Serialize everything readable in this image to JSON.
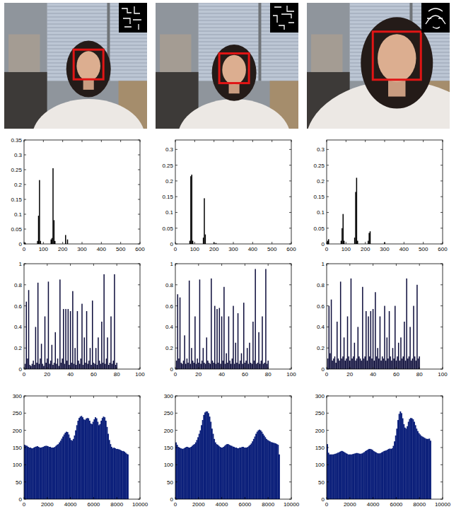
{
  "chart_data": [
    {
      "type": "bar",
      "color": "#000000",
      "xlim": [
        0,
        600
      ],
      "ylim": [
        0,
        0.35
      ],
      "xticks": [
        0,
        100,
        200,
        300,
        400,
        500,
        600
      ],
      "yticks": [
        0,
        0.05,
        0.1,
        0.15,
        0.2,
        0.25,
        0.3,
        0.35
      ],
      "x": [
        5,
        70,
        75,
        80,
        85,
        140,
        145,
        150,
        155,
        160,
        215,
        225
      ],
      "values": [
        0.005,
        0.01,
        0.095,
        0.215,
        0.01,
        0.015,
        0.02,
        0.255,
        0.08,
        0.01,
        0.03,
        0.015
      ]
    },
    {
      "type": "bar",
      "color": "#000000",
      "xlim": [
        0,
        600
      ],
      "ylim": [
        0,
        0.33
      ],
      "xticks": [
        0,
        100,
        200,
        300,
        400,
        500,
        600
      ],
      "yticks": [
        0,
        0.05,
        0.1,
        0.15,
        0.2,
        0.25,
        0.3
      ],
      "x": [
        75,
        80,
        85,
        90,
        145,
        150,
        155,
        200,
        210
      ],
      "values": [
        0.01,
        0.215,
        0.22,
        0.01,
        0.02,
        0.145,
        0.03,
        0.005,
        0.003
      ]
    },
    {
      "type": "bar",
      "color": "#000000",
      "xlim": [
        0,
        600
      ],
      "ylim": [
        0,
        0.33
      ],
      "xticks": [
        0,
        100,
        200,
        300,
        400,
        500,
        600
      ],
      "yticks": [
        0,
        0.05,
        0.1,
        0.15,
        0.2,
        0.25,
        0.3
      ],
      "x": [
        5,
        10,
        75,
        80,
        85,
        90,
        145,
        150,
        155,
        160,
        215,
        220,
        225,
        300
      ],
      "values": [
        0.01,
        0.015,
        0.01,
        0.05,
        0.095,
        0.01,
        0.02,
        0.165,
        0.21,
        0.01,
        0.01,
        0.035,
        0.04,
        0.005
      ]
    },
    {
      "type": "bar",
      "color": "#0c0c3a",
      "xlim": [
        0,
        100
      ],
      "ylim": [
        0,
        1
      ],
      "xticks": [
        0,
        20,
        40,
        60,
        80,
        100
      ],
      "yticks": [
        0,
        0.2,
        0.4,
        0.6,
        0.8,
        1
      ],
      "x": [
        1,
        2,
        3,
        4,
        5,
        6,
        7,
        8,
        9,
        10,
        11,
        12,
        13,
        14,
        15,
        16,
        17,
        18,
        19,
        20,
        21,
        22,
        23,
        24,
        25,
        26,
        27,
        28,
        29,
        30,
        31,
        32,
        33,
        34,
        35,
        36,
        37,
        38,
        39,
        40,
        41,
        42,
        43,
        44,
        45,
        46,
        47,
        48,
        49,
        50,
        51,
        52,
        53,
        54,
        55,
        56,
        57,
        58,
        59,
        60,
        61,
        62,
        63,
        64,
        65,
        66,
        67,
        68,
        69,
        70,
        71,
        72,
        73,
        74,
        75,
        76,
        77,
        78,
        79,
        80
      ],
      "values": [
        0.05,
        0.64,
        0.1,
        0.75,
        0.04,
        0.03,
        0.05,
        0.08,
        0.04,
        0.4,
        0.06,
        0.82,
        0.05,
        0.1,
        0.24,
        0.05,
        0.03,
        0.5,
        0.06,
        0.1,
        0.83,
        0.05,
        0.08,
        0.23,
        0.04,
        0.06,
        0.35,
        0.05,
        0.1,
        0.03,
        0.85,
        0.06,
        0.1,
        0.57,
        0.05,
        0.57,
        0.08,
        0.57,
        0.04,
        0.55,
        0.06,
        0.74,
        0.05,
        0.2,
        0.04,
        0.55,
        0.08,
        0.05,
        0.1,
        0.62,
        0.04,
        0.3,
        0.06,
        0.55,
        0.05,
        0.08,
        0.2,
        0.04,
        0.65,
        0.06,
        0.05,
        0.2,
        0.04,
        0.3,
        0.08,
        0.05,
        0.45,
        0.06,
        0.9,
        0.05,
        0.1,
        0.3,
        0.04,
        0.06,
        0.5,
        0.05,
        0.08,
        0.9,
        0.04,
        0.06
      ]
    },
    {
      "type": "bar",
      "color": "#0c0c3a",
      "xlim": [
        0,
        100
      ],
      "ylim": [
        0,
        1
      ],
      "xticks": [
        0,
        20,
        40,
        60,
        80,
        100
      ],
      "yticks": [
        0,
        0.2,
        0.4,
        0.6,
        0.8,
        1
      ],
      "x": [
        1,
        2,
        3,
        4,
        5,
        6,
        7,
        8,
        9,
        10,
        11,
        12,
        13,
        14,
        15,
        16,
        17,
        18,
        19,
        20,
        21,
        22,
        23,
        24,
        25,
        26,
        27,
        28,
        29,
        30,
        31,
        32,
        33,
        34,
        35,
        36,
        37,
        38,
        39,
        40,
        41,
        42,
        43,
        44,
        45,
        46,
        47,
        48,
        49,
        50,
        51,
        52,
        53,
        54,
        55,
        56,
        57,
        58,
        59,
        60,
        61,
        62,
        63,
        64,
        65,
        66,
        67,
        68,
        69,
        70,
        71,
        72,
        73,
        74,
        75,
        76,
        77,
        78,
        79,
        80
      ],
      "values": [
        0.08,
        0.71,
        0.1,
        0.68,
        0.06,
        0.05,
        0.08,
        0.32,
        0.05,
        0.1,
        0.06,
        0.84,
        0.05,
        0.2,
        0.08,
        0.06,
        0.5,
        0.05,
        0.1,
        0.06,
        0.85,
        0.05,
        0.08,
        0.2,
        0.06,
        0.05,
        0.3,
        0.08,
        0.06,
        0.05,
        0.86,
        0.08,
        0.06,
        0.6,
        0.05,
        0.57,
        0.06,
        0.58,
        0.05,
        0.5,
        0.08,
        0.78,
        0.05,
        0.15,
        0.06,
        0.5,
        0.08,
        0.05,
        0.1,
        0.6,
        0.05,
        0.25,
        0.06,
        0.53,
        0.05,
        0.08,
        0.15,
        0.05,
        0.63,
        0.06,
        0.08,
        0.2,
        0.05,
        0.25,
        0.06,
        0.05,
        0.45,
        0.08,
        0.95,
        0.05,
        0.06,
        0.35,
        0.05,
        0.08,
        0.5,
        0.05,
        0.06,
        0.95,
        0.05,
        0.08
      ]
    },
    {
      "type": "bar",
      "color": "#0c0c3a",
      "xlim": [
        0,
        100
      ],
      "ylim": [
        0,
        1
      ],
      "xticks": [
        0,
        20,
        40,
        60,
        80,
        100
      ],
      "yticks": [
        0,
        0.2,
        0.4,
        0.6,
        0.8,
        1
      ],
      "x": [
        1,
        2,
        3,
        4,
        5,
        6,
        7,
        8,
        9,
        10,
        11,
        12,
        13,
        14,
        15,
        16,
        17,
        18,
        19,
        20,
        21,
        22,
        23,
        24,
        25,
        26,
        27,
        28,
        29,
        30,
        31,
        32,
        33,
        34,
        35,
        36,
        37,
        38,
        39,
        40,
        41,
        42,
        43,
        44,
        45,
        46,
        47,
        48,
        49,
        50,
        51,
        52,
        53,
        54,
        55,
        56,
        57,
        58,
        59,
        60,
        61,
        62,
        63,
        64,
        65,
        66,
        67,
        68,
        69,
        70,
        71,
        72,
        73,
        74,
        75,
        76,
        77,
        78,
        79,
        80
      ],
      "values": [
        0.1,
        0.6,
        0.15,
        0.66,
        0.08,
        0.1,
        0.12,
        0.06,
        0.45,
        0.1,
        0.08,
        0.83,
        0.1,
        0.12,
        0.3,
        0.08,
        0.1,
        0.5,
        0.12,
        0.08,
        0.86,
        0.1,
        0.12,
        0.25,
        0.08,
        0.1,
        0.4,
        0.12,
        0.1,
        0.08,
        0.78,
        0.1,
        0.12,
        0.55,
        0.08,
        0.5,
        0.12,
        0.55,
        0.1,
        0.57,
        0.08,
        0.73,
        0.12,
        0.2,
        0.1,
        0.5,
        0.08,
        0.12,
        0.1,
        0.6,
        0.08,
        0.3,
        0.1,
        0.55,
        0.12,
        0.08,
        0.2,
        0.1,
        0.6,
        0.08,
        0.12,
        0.25,
        0.08,
        0.3,
        0.1,
        0.12,
        0.45,
        0.08,
        0.86,
        0.1,
        0.12,
        0.4,
        0.08,
        0.1,
        0.6,
        0.12,
        0.08,
        0.8,
        0.1,
        0.12
      ]
    },
    {
      "type": "histogram",
      "color": "#0b1f7a",
      "xlim": [
        0,
        10000
      ],
      "ylim": [
        0,
        300
      ],
      "xticks": [
        0,
        2000,
        4000,
        6000,
        8000,
        10000
      ],
      "yticks": [
        0,
        50,
        100,
        150,
        200,
        250,
        300
      ],
      "bins": [
        0,
        100,
        200,
        300,
        400,
        500,
        600,
        700,
        800,
        900,
        1000,
        1100,
        1200,
        1300,
        1400,
        1500,
        1600,
        1700,
        1800,
        1900,
        2000,
        2100,
        2200,
        2300,
        2400,
        2500,
        2600,
        2700,
        2800,
        2900,
        3000,
        3100,
        3200,
        3300,
        3400,
        3500,
        3600,
        3700,
        3800,
        3900,
        4000,
        4100,
        4200,
        4300,
        4400,
        4500,
        4600,
        4700,
        4800,
        4900,
        5000,
        5100,
        5200,
        5300,
        5400,
        5500,
        5600,
        5700,
        5800,
        5900,
        6000,
        6100,
        6200,
        6300,
        6400,
        6500,
        6600,
        6700,
        6800,
        6900,
        7000,
        7100,
        7200,
        7300,
        7400,
        7500,
        7600,
        7700,
        7800,
        7900,
        8000,
        8100,
        8200,
        8300,
        8400,
        8500,
        8600,
        8700,
        8800,
        8900,
        9000
      ],
      "values": [
        158,
        156,
        155,
        152,
        150,
        150,
        148,
        148,
        150,
        152,
        153,
        154,
        152,
        150,
        150,
        151,
        152,
        154,
        155,
        155,
        154,
        152,
        152,
        150,
        150,
        150,
        152,
        155,
        158,
        160,
        165,
        170,
        176,
        182,
        188,
        193,
        196,
        195,
        188,
        178,
        172,
        170,
        175,
        185,
        200,
        215,
        228,
        236,
        240,
        242,
        238,
        232,
        230,
        234,
        236,
        235,
        228,
        220,
        218,
        225,
        232,
        238,
        235,
        225,
        215,
        218,
        228,
        236,
        240,
        238,
        228,
        210,
        190,
        172,
        160,
        152,
        148,
        150,
        148,
        146,
        146,
        145,
        144,
        142,
        140,
        140,
        138,
        135,
        132,
        130
      ]
    },
    {
      "type": "histogram",
      "color": "#0b1f7a",
      "xlim": [
        0,
        10000
      ],
      "ylim": [
        0,
        300
      ],
      "xticks": [
        0,
        2000,
        4000,
        6000,
        8000,
        10000
      ],
      "yticks": [
        0,
        50,
        100,
        150,
        200,
        250,
        300
      ],
      "bins": [
        0,
        100,
        200,
        300,
        400,
        500,
        600,
        700,
        800,
        900,
        1000,
        1100,
        1200,
        1300,
        1400,
        1500,
        1600,
        1700,
        1800,
        1900,
        2000,
        2100,
        2200,
        2300,
        2400,
        2500,
        2600,
        2700,
        2800,
        2900,
        3000,
        3100,
        3200,
        3300,
        3400,
        3500,
        3600,
        3700,
        3800,
        3900,
        4000,
        4100,
        4200,
        4300,
        4400,
        4500,
        4600,
        4700,
        4800,
        4900,
        5000,
        5100,
        5200,
        5300,
        5400,
        5500,
        5600,
        5700,
        5800,
        5900,
        6000,
        6100,
        6200,
        6300,
        6400,
        6500,
        6600,
        6700,
        6800,
        6900,
        7000,
        7100,
        7200,
        7300,
        7400,
        7500,
        7600,
        7700,
        7800,
        7900,
        8000,
        8100,
        8200,
        8300,
        8400,
        8500,
        8600,
        8700,
        8800,
        8900,
        9000
      ],
      "values": [
        165,
        158,
        152,
        150,
        148,
        147,
        146,
        148,
        150,
        152,
        152,
        150,
        150,
        152,
        155,
        158,
        160,
        165,
        172,
        180,
        190,
        200,
        215,
        230,
        245,
        252,
        255,
        255,
        250,
        240,
        225,
        205,
        190,
        175,
        165,
        160,
        158,
        155,
        152,
        150,
        150,
        152,
        155,
        158,
        160,
        160,
        158,
        156,
        155,
        153,
        152,
        150,
        150,
        148,
        148,
        150,
        150,
        152,
        152,
        150,
        150,
        150,
        152,
        155,
        158,
        162,
        168,
        175,
        182,
        190,
        196,
        200,
        202,
        200,
        196,
        190,
        185,
        180,
        175,
        172,
        170,
        168,
        166,
        165,
        164,
        163,
        162,
        160,
        158,
        130
      ]
    },
    {
      "type": "histogram",
      "color": "#0b1f7a",
      "xlim": [
        0,
        10000
      ],
      "ylim": [
        0,
        300
      ],
      "xticks": [
        0,
        2000,
        4000,
        6000,
        8000,
        10000
      ],
      "yticks": [
        0,
        50,
        100,
        150,
        200,
        250,
        300
      ],
      "bins": [
        0,
        100,
        200,
        300,
        400,
        500,
        600,
        700,
        800,
        900,
        1000,
        1100,
        1200,
        1300,
        1400,
        1500,
        1600,
        1700,
        1800,
        1900,
        2000,
        2100,
        2200,
        2300,
        2400,
        2500,
        2600,
        2700,
        2800,
        2900,
        3000,
        3100,
        3200,
        3300,
        3400,
        3500,
        3600,
        3700,
        3800,
        3900,
        4000,
        4100,
        4200,
        4300,
        4400,
        4500,
        4600,
        4700,
        4800,
        4900,
        5000,
        5100,
        5200,
        5300,
        5400,
        5500,
        5600,
        5700,
        5800,
        5900,
        6000,
        6100,
        6200,
        6300,
        6400,
        6500,
        6600,
        6700,
        6800,
        6900,
        7000,
        7100,
        7200,
        7300,
        7400,
        7500,
        7600,
        7700,
        7800,
        7900,
        8000,
        8100,
        8200,
        8300,
        8400,
        8500,
        8600,
        8700,
        8800,
        8900,
        9000
      ],
      "values": [
        160,
        135,
        130,
        130,
        130,
        130,
        131,
        132,
        133,
        135,
        136,
        138,
        140,
        140,
        138,
        136,
        134,
        132,
        130,
        130,
        130,
        130,
        131,
        132,
        133,
        134,
        134,
        133,
        132,
        132,
        133,
        135,
        137,
        140,
        142,
        144,
        146,
        146,
        145,
        143,
        140,
        138,
        136,
        134,
        133,
        133,
        134,
        136,
        138,
        140,
        141,
        142,
        144,
        146,
        147,
        146,
        148,
        155,
        168,
        185,
        205,
        230,
        248,
        255,
        250,
        235,
        218,
        208,
        205,
        212,
        225,
        233,
        236,
        235,
        232,
        225,
        215,
        205,
        198,
        192,
        188,
        184,
        182,
        180,
        178,
        176,
        175,
        175,
        176,
        170
      ]
    }
  ]
}
